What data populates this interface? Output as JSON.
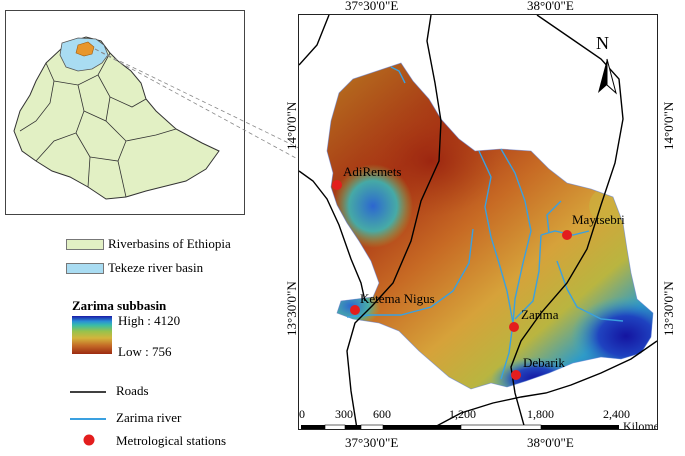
{
  "axes": {
    "top_ticks": [
      "37°30'0\"E",
      "38°0'0\"E"
    ],
    "bottom_ticks": [
      "37°30'0\"E",
      "38°0'0\"E"
    ],
    "left_ticks": [
      "14°0'0\"N",
      "13°30'0\"N"
    ],
    "right_ticks": [
      "14°0'0\"N",
      "13°30'0\"N"
    ]
  },
  "north_arrow": {
    "label": "N"
  },
  "stations": [
    {
      "name": "AdiRemets"
    },
    {
      "name": "Maytsebri"
    },
    {
      "name": "Ketema Nigus"
    },
    {
      "name": "Zarima"
    },
    {
      "name": "Debarik"
    }
  ],
  "legend": {
    "basins_label": "Riverbasins of Ethiopia",
    "tekeze_label": "Tekeze  river basin",
    "dem_title": "Zarima subbasin",
    "dem_high": "High : 4120",
    "dem_low": "Low : 756",
    "roads_label": "Roads",
    "river_label": "Zarima river",
    "stations_label": "Metrological stations"
  },
  "scale_bar": {
    "ticks": [
      "0",
      "300",
      "600",
      "1,200",
      "1,800",
      "2,400"
    ],
    "unit": "Kilometers"
  },
  "colors": {
    "basin_fill": "#e2f0c4",
    "tekeze_fill": "#a9dcf2",
    "subbasin_fill": "#e8962c",
    "river": "#3aa0e0",
    "road": "#000000",
    "station": "#e31d1d",
    "dem_high": "#1a1aa8",
    "dem_mid": "#cf9a35",
    "dem_low": "#a52d13"
  }
}
